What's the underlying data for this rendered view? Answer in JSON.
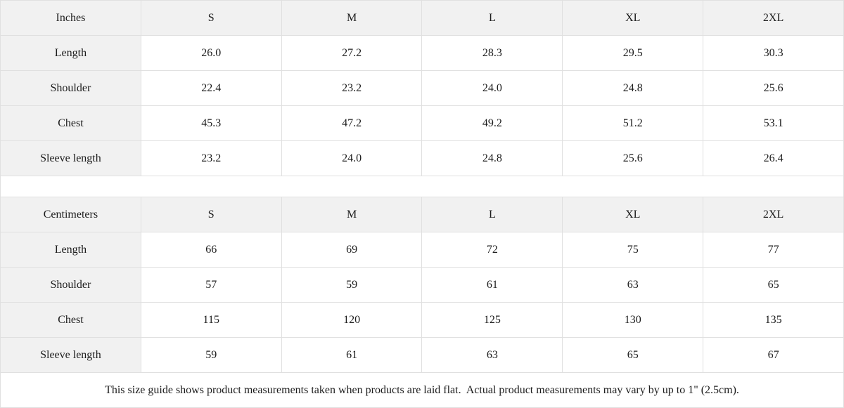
{
  "tables": [
    {
      "unit_label": "Inches",
      "sizes": [
        "S",
        "M",
        "L",
        "XL",
        "2XL"
      ],
      "rows": [
        {
          "label": "Length",
          "values": [
            "26.0",
            "27.2",
            "28.3",
            "29.5",
            "30.3"
          ]
        },
        {
          "label": "Shoulder",
          "values": [
            "22.4",
            "23.2",
            "24.0",
            "24.8",
            "25.6"
          ]
        },
        {
          "label": "Chest",
          "values": [
            "45.3",
            "47.2",
            "49.2",
            "51.2",
            "53.1"
          ]
        },
        {
          "label": "Sleeve length",
          "values": [
            "23.2",
            "24.0",
            "24.8",
            "25.6",
            "26.4"
          ]
        }
      ]
    },
    {
      "unit_label": "Centimeters",
      "sizes": [
        "S",
        "M",
        "L",
        "XL",
        "2XL"
      ],
      "rows": [
        {
          "label": "Length",
          "values": [
            "66",
            "69",
            "72",
            "75",
            "77"
          ]
        },
        {
          "label": "Shoulder",
          "values": [
            "57",
            "59",
            "61",
            "63",
            "65"
          ]
        },
        {
          "label": "Chest",
          "values": [
            "115",
            "120",
            "125",
            "130",
            "135"
          ]
        },
        {
          "label": "Sleeve length",
          "values": [
            "59",
            "61",
            "63",
            "65",
            "67"
          ]
        }
      ]
    }
  ],
  "footer_note": "This size guide shows product measurements taken when products are laid flat.  Actual product measurements may vary by up to 1\" (2.5cm).",
  "colors": {
    "header_bg": "#f1f1f1",
    "border": "#e0e0e0",
    "text": "#1c1c1c",
    "background": "#ffffff"
  }
}
